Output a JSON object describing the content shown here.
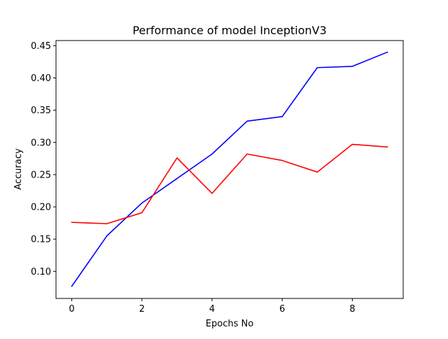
{
  "chart_data": {
    "type": "line",
    "title": "Performance of model InceptionV3",
    "xlabel": "Epochs No",
    "ylabel": "Accuracy",
    "x": [
      0,
      1,
      2,
      3,
      4,
      5,
      6,
      7,
      8,
      9
    ],
    "xlim": [
      -0.45,
      9.45
    ],
    "ylim": [
      0.058,
      0.458
    ],
    "xticks": [
      0,
      2,
      4,
      6,
      8
    ],
    "yticks": [
      0.1,
      0.15,
      0.2,
      0.25,
      0.3,
      0.35,
      0.4,
      0.45
    ],
    "xtick_labels": [
      "0",
      "2",
      "4",
      "6",
      "8"
    ],
    "ytick_labels": [
      "0.10",
      "0.15",
      "0.20",
      "0.25",
      "0.30",
      "0.35",
      "0.40",
      "0.45"
    ],
    "grid": false,
    "legend": "none",
    "series": [
      {
        "color": "#0000ff",
        "values": [
          0.077,
          0.155,
          0.206,
          0.244,
          0.282,
          0.333,
          0.34,
          0.416,
          0.418,
          0.44
        ]
      },
      {
        "color": "#ff0000",
        "values": [
          0.176,
          0.174,
          0.191,
          0.276,
          0.221,
          0.282,
          0.272,
          0.254,
          0.297,
          0.293
        ]
      }
    ]
  }
}
